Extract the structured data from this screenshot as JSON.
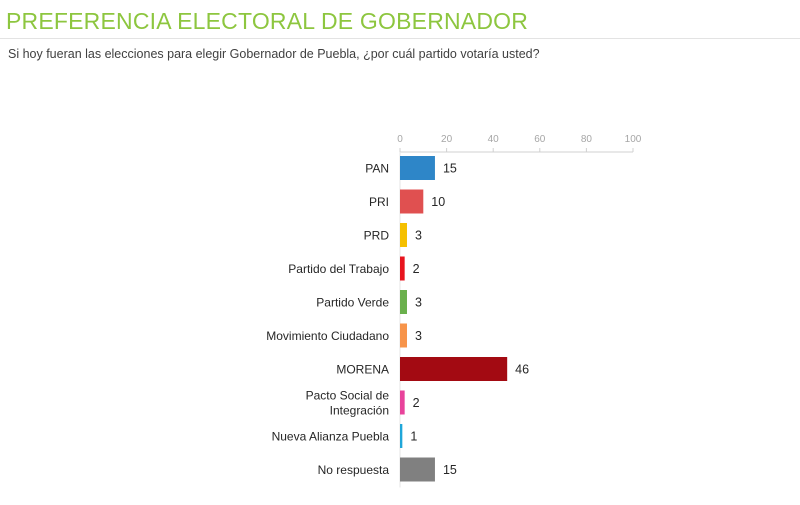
{
  "header": {
    "title": "PREFERENCIA ELECTORAL DE GOBERNADOR",
    "subtitle": "Si hoy fueran las elecciones para elegir Gobernador de Puebla, ¿por cuál partido votaría usted?"
  },
  "chart_data": {
    "type": "bar",
    "orientation": "horizontal",
    "title": "PREFERENCIA ELECTORAL DE GOBERNADOR",
    "subtitle": "Si hoy fueran las elecciones para elegir Gobernador de Puebla, ¿por cuál partido votaría usted?",
    "categories": [
      "PAN",
      "PRI",
      "PRD",
      "Partido del Trabajo",
      "Partido Verde",
      "Movimiento Ciudadano",
      "MORENA",
      "Pacto Social de Integración",
      "Nueva Alianza Puebla",
      "No respuesta"
    ],
    "category_lines": [
      [
        "PAN"
      ],
      [
        "PRI"
      ],
      [
        "PRD"
      ],
      [
        "Partido del Trabajo"
      ],
      [
        "Partido Verde"
      ],
      [
        "Movimiento Ciudadano"
      ],
      [
        "MORENA"
      ],
      [
        "Pacto Social de",
        "Integración"
      ],
      [
        "Nueva Alianza Puebla"
      ],
      [
        "No respuesta"
      ]
    ],
    "values": [
      15,
      10,
      3,
      2,
      3,
      3,
      46,
      2,
      1,
      15
    ],
    "colors": [
      "#2e86c8",
      "#e05050",
      "#f5c000",
      "#e8141e",
      "#6ab04c",
      "#f7944a",
      "#a30a12",
      "#e8439b",
      "#1fa6d9",
      "#808080"
    ],
    "xlim": [
      0,
      100
    ],
    "xticks": [
      0,
      20,
      40,
      60,
      80,
      100
    ],
    "xaxis_position": "top",
    "grid": false,
    "legend": "none",
    "data_labels": true
  }
}
